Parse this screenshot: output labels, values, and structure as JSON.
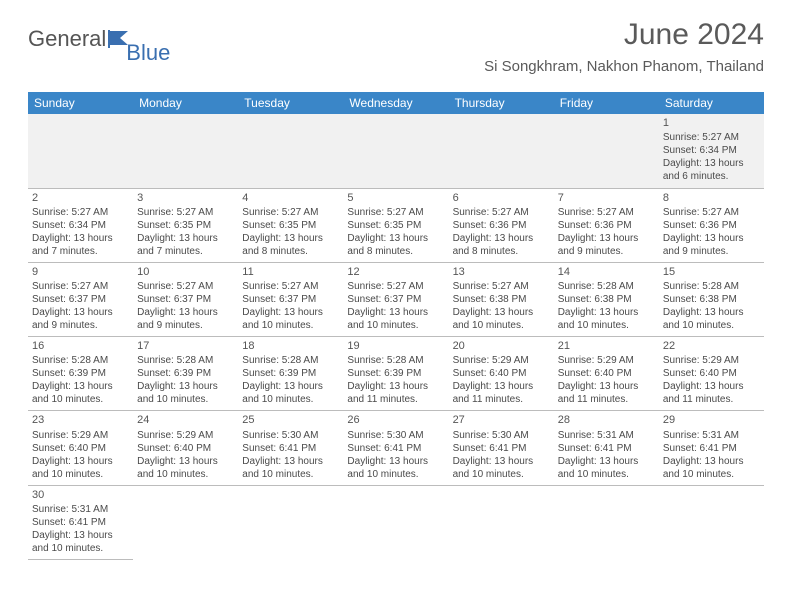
{
  "brand": {
    "part1": "General",
    "part2": "Blue"
  },
  "title": "June 2024",
  "location": "Si Songkhram, Nakhon Phanom, Thailand",
  "colors": {
    "header_bg": "#3a86c8",
    "header_text": "#ffffff",
    "body_text": "#4a4a4a",
    "border": "#bcbcbc",
    "empty_bg": "#f1f1f1",
    "logo_blue": "#3a6fb0"
  },
  "weekdays": [
    "Sunday",
    "Monday",
    "Tuesday",
    "Wednesday",
    "Thursday",
    "Friday",
    "Saturday"
  ],
  "first_day_column": 6,
  "days": [
    {
      "n": 1,
      "sunrise": "5:27 AM",
      "sunset": "6:34 PM",
      "daylight": "13 hours and 6 minutes."
    },
    {
      "n": 2,
      "sunrise": "5:27 AM",
      "sunset": "6:34 PM",
      "daylight": "13 hours and 7 minutes."
    },
    {
      "n": 3,
      "sunrise": "5:27 AM",
      "sunset": "6:35 PM",
      "daylight": "13 hours and 7 minutes."
    },
    {
      "n": 4,
      "sunrise": "5:27 AM",
      "sunset": "6:35 PM",
      "daylight": "13 hours and 8 minutes."
    },
    {
      "n": 5,
      "sunrise": "5:27 AM",
      "sunset": "6:35 PM",
      "daylight": "13 hours and 8 minutes."
    },
    {
      "n": 6,
      "sunrise": "5:27 AM",
      "sunset": "6:36 PM",
      "daylight": "13 hours and 8 minutes."
    },
    {
      "n": 7,
      "sunrise": "5:27 AM",
      "sunset": "6:36 PM",
      "daylight": "13 hours and 9 minutes."
    },
    {
      "n": 8,
      "sunrise": "5:27 AM",
      "sunset": "6:36 PM",
      "daylight": "13 hours and 9 minutes."
    },
    {
      "n": 9,
      "sunrise": "5:27 AM",
      "sunset": "6:37 PM",
      "daylight": "13 hours and 9 minutes."
    },
    {
      "n": 10,
      "sunrise": "5:27 AM",
      "sunset": "6:37 PM",
      "daylight": "13 hours and 9 minutes."
    },
    {
      "n": 11,
      "sunrise": "5:27 AM",
      "sunset": "6:37 PM",
      "daylight": "13 hours and 10 minutes."
    },
    {
      "n": 12,
      "sunrise": "5:27 AM",
      "sunset": "6:37 PM",
      "daylight": "13 hours and 10 minutes."
    },
    {
      "n": 13,
      "sunrise": "5:27 AM",
      "sunset": "6:38 PM",
      "daylight": "13 hours and 10 minutes."
    },
    {
      "n": 14,
      "sunrise": "5:28 AM",
      "sunset": "6:38 PM",
      "daylight": "13 hours and 10 minutes."
    },
    {
      "n": 15,
      "sunrise": "5:28 AM",
      "sunset": "6:38 PM",
      "daylight": "13 hours and 10 minutes."
    },
    {
      "n": 16,
      "sunrise": "5:28 AM",
      "sunset": "6:39 PM",
      "daylight": "13 hours and 10 minutes."
    },
    {
      "n": 17,
      "sunrise": "5:28 AM",
      "sunset": "6:39 PM",
      "daylight": "13 hours and 10 minutes."
    },
    {
      "n": 18,
      "sunrise": "5:28 AM",
      "sunset": "6:39 PM",
      "daylight": "13 hours and 10 minutes."
    },
    {
      "n": 19,
      "sunrise": "5:28 AM",
      "sunset": "6:39 PM",
      "daylight": "13 hours and 11 minutes."
    },
    {
      "n": 20,
      "sunrise": "5:29 AM",
      "sunset": "6:40 PM",
      "daylight": "13 hours and 11 minutes."
    },
    {
      "n": 21,
      "sunrise": "5:29 AM",
      "sunset": "6:40 PM",
      "daylight": "13 hours and 11 minutes."
    },
    {
      "n": 22,
      "sunrise": "5:29 AM",
      "sunset": "6:40 PM",
      "daylight": "13 hours and 11 minutes."
    },
    {
      "n": 23,
      "sunrise": "5:29 AM",
      "sunset": "6:40 PM",
      "daylight": "13 hours and 10 minutes."
    },
    {
      "n": 24,
      "sunrise": "5:29 AM",
      "sunset": "6:40 PM",
      "daylight": "13 hours and 10 minutes."
    },
    {
      "n": 25,
      "sunrise": "5:30 AM",
      "sunset": "6:41 PM",
      "daylight": "13 hours and 10 minutes."
    },
    {
      "n": 26,
      "sunrise": "5:30 AM",
      "sunset": "6:41 PM",
      "daylight": "13 hours and 10 minutes."
    },
    {
      "n": 27,
      "sunrise": "5:30 AM",
      "sunset": "6:41 PM",
      "daylight": "13 hours and 10 minutes."
    },
    {
      "n": 28,
      "sunrise": "5:31 AM",
      "sunset": "6:41 PM",
      "daylight": "13 hours and 10 minutes."
    },
    {
      "n": 29,
      "sunrise": "5:31 AM",
      "sunset": "6:41 PM",
      "daylight": "13 hours and 10 minutes."
    },
    {
      "n": 30,
      "sunrise": "5:31 AM",
      "sunset": "6:41 PM",
      "daylight": "13 hours and 10 minutes."
    }
  ],
  "labels": {
    "sunrise": "Sunrise:",
    "sunset": "Sunset:",
    "daylight": "Daylight:"
  }
}
